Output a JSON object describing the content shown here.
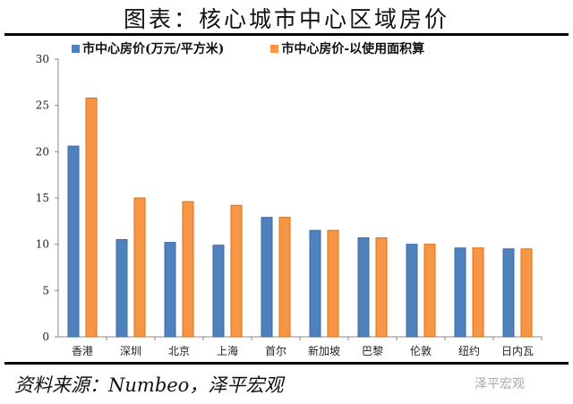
{
  "chart_data": {
    "type": "bar",
    "title": "图表：核心城市中心区域房价",
    "categories": [
      "香港",
      "深圳",
      "北京",
      "上海",
      "首尔",
      "新加坡",
      "巴黎",
      "伦敦",
      "纽约",
      "日内瓦"
    ],
    "series": [
      {
        "name": "市中心房价(万元/平方米)",
        "color": "#4f81bd",
        "values": [
          20.6,
          10.5,
          10.2,
          9.9,
          12.9,
          11.5,
          10.7,
          10.0,
          9.6,
          9.5
        ]
      },
      {
        "name": "市中心房价-以使用面积算",
        "color": "#f79646",
        "values": [
          25.8,
          15.0,
          14.6,
          14.2,
          12.9,
          11.5,
          10.7,
          10.0,
          9.6,
          9.5
        ]
      }
    ],
    "ylim": [
      0,
      30
    ],
    "yticks": [
      0,
      5,
      10,
      15,
      20,
      25,
      30
    ],
    "grid": false,
    "legend": "top"
  },
  "source": "资料来源：Numbeo，泽平宏观",
  "watermark": "泽平宏观"
}
